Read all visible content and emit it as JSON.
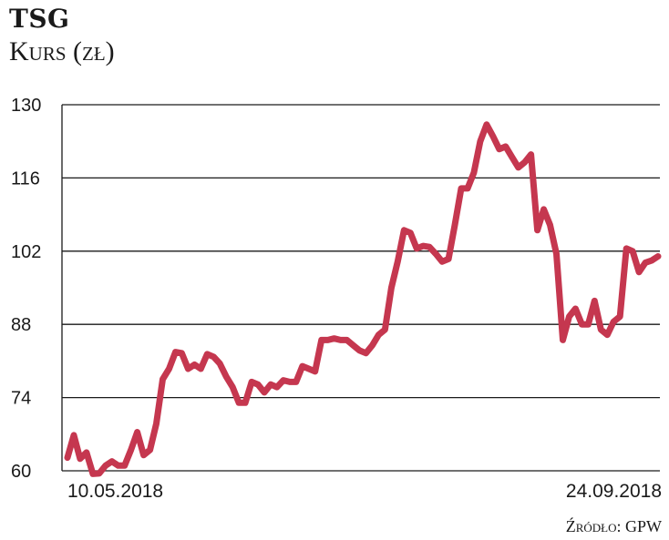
{
  "header": {
    "title": "TSG",
    "subtitle": "Kurs (zł)"
  },
  "source": "Źródło: GPW",
  "chart_data": {
    "type": "line",
    "title": "TSG",
    "ylabel": "Kurs (zł)",
    "ylim": [
      60,
      130
    ],
    "yticks": [
      60,
      74,
      88,
      102,
      116,
      130
    ],
    "x_labels": [
      "10.05.2018",
      "24.09.2018"
    ],
    "grid": "horizontal",
    "line_color": "#c5374f",
    "series": [
      {
        "values": [
          62.5,
          66.8,
          62.3,
          63.5,
          59.4,
          59.5,
          61.0,
          61.8,
          61.0,
          61.0,
          64.0,
          67.4,
          63.0,
          64.0,
          69.0,
          77.5,
          79.5,
          82.7,
          82.5,
          79.5,
          80.3,
          79.5,
          82.3,
          81.8,
          80.5,
          78.0,
          76.0,
          73.0,
          73.0,
          77.0,
          76.5,
          75.0,
          76.5,
          76.0,
          77.3,
          77.0,
          77.0,
          80.0,
          79.5,
          79.0,
          85.0,
          85.0,
          85.3,
          85.0,
          85.0,
          84.0,
          83.0,
          82.5,
          84.0,
          86.0,
          87.0,
          95.0,
          100.0,
          106.0,
          105.5,
          102.5,
          103.0,
          102.8,
          101.5,
          100.0,
          100.5,
          107.0,
          114.0,
          114.0,
          117.0,
          123.0,
          126.2,
          124.0,
          121.5,
          122.0,
          120.0,
          118.0,
          119.0,
          120.5,
          106.0,
          110.0,
          107.0,
          101.5,
          85.0,
          89.5,
          91.0,
          88.0,
          88.0,
          92.5,
          87.0,
          86.0,
          88.5,
          89.5,
          102.5,
          102.0,
          98.0,
          99.8,
          100.2,
          101.0
        ]
      }
    ]
  }
}
